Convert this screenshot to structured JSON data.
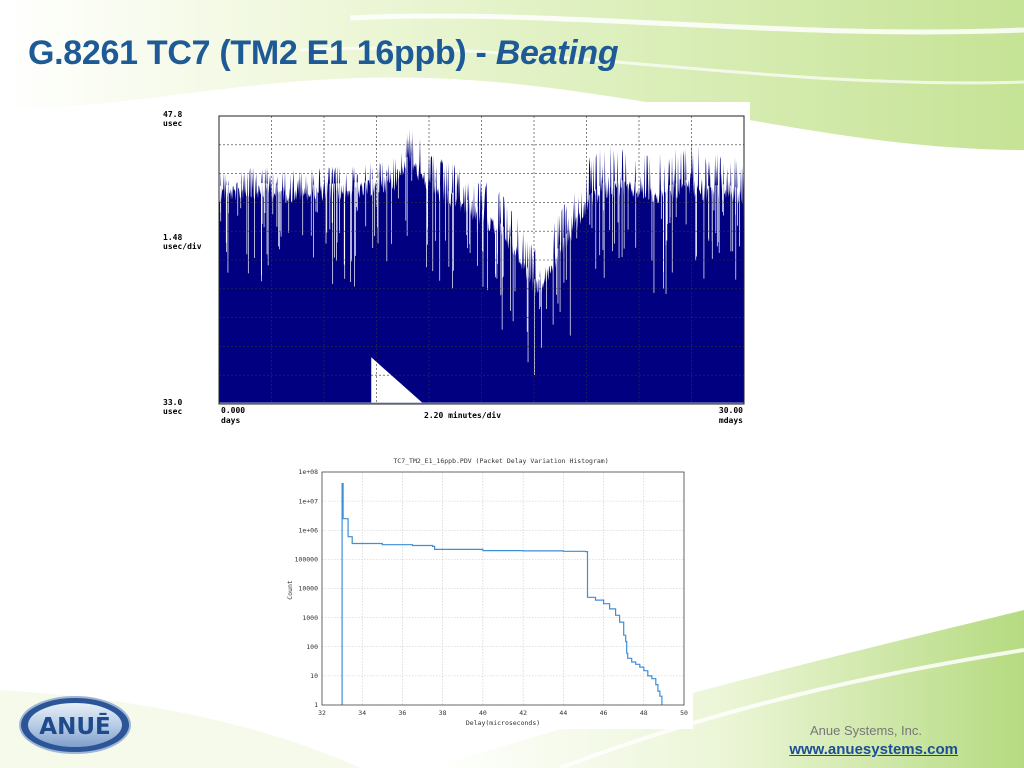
{
  "slide": {
    "title_main": "G.8261 TC7 (TM2 E1 16ppb) - ",
    "title_emphasis": "Beating",
    "company": "Anue Systems, Inc.",
    "website": "www.anuesystems.com",
    "logo_text": "ANUĒ",
    "colors": {
      "title": "#1e5a96",
      "accent_green": "#8cc63f",
      "link": "#1a4f96",
      "trace": "#000080",
      "histogram": "#3d8fd8"
    }
  },
  "chart_data": [
    {
      "type": "area",
      "title": "",
      "y_top_label": [
        "47.8",
        "usec"
      ],
      "y_scale_label": [
        "1.48",
        "usec/div"
      ],
      "y_bottom_label": [
        "33.0",
        "usec"
      ],
      "x_left_label": [
        "0.000",
        "days"
      ],
      "x_scale_label": "2.20 minutes/div",
      "x_right_label": [
        "30.00",
        "mdays"
      ],
      "ylim": [
        33.0,
        47.8
      ],
      "xlim": [
        0,
        30
      ],
      "x_unit": "mdays",
      "grid": true,
      "color": "#000080",
      "envelope": {
        "x": [
          0,
          2,
          4,
          6,
          8,
          9,
          10,
          10.5,
          11,
          12,
          13,
          14,
          15,
          16,
          17,
          17.5,
          18,
          18.5,
          19,
          20,
          21,
          22,
          23,
          24,
          25,
          26,
          27,
          28,
          29,
          30
        ],
        "typical": [
          44.2,
          44.4,
          44.2,
          44.3,
          44.4,
          44.6,
          44.8,
          45.6,
          45.8,
          44.6,
          44.0,
          43.6,
          43.0,
          42.4,
          41.2,
          40.2,
          39.4,
          39.6,
          40.4,
          42.0,
          43.6,
          44.4,
          44.5,
          44.4,
          44.1,
          44.3,
          44.6,
          44.2,
          44.3,
          44.0
        ],
        "peak": [
          45.0,
          45.3,
          45.1,
          45.2,
          45.4,
          45.5,
          45.8,
          47.0,
          47.4,
          46.0,
          45.6,
          45.0,
          44.6,
          44.0,
          42.8,
          41.8,
          41.0,
          41.2,
          42.4,
          43.6,
          45.6,
          46.4,
          46.2,
          46.0,
          45.8,
          46.1,
          46.6,
          45.8,
          46.0,
          45.6
        ]
      }
    },
    {
      "type": "line",
      "title": "TC7_TM2_E1_16ppb.PDV (Packet Delay Variation Histogram)",
      "xlabel": "Delay(microseconds)",
      "ylabel": "Count",
      "xlim": [
        32,
        50
      ],
      "ylim": [
        1,
        100000000
      ],
      "y_scale": "log",
      "grid": true,
      "x_ticks": [
        "32",
        "34",
        "36",
        "38",
        "40",
        "42",
        "44",
        "46",
        "48",
        "50"
      ],
      "y_ticks": [
        "1",
        "10",
        "100",
        "1000",
        "10000",
        "100000",
        "1e+06",
        "1e+07",
        "1e+08"
      ],
      "series": [
        {
          "x": [
            33.0,
            33.0,
            33.05,
            33.05,
            33.3,
            33.3,
            33.5,
            35,
            36.5,
            37.5,
            37.6,
            40,
            42,
            44,
            45.1,
            45.2,
            45.3,
            45.6,
            46.0,
            46.3,
            46.6,
            46.8,
            47.0,
            47.1,
            47.15,
            47.2,
            47.4,
            47.6,
            47.8,
            48.0,
            48.2,
            48.4,
            48.6,
            48.7,
            48.8,
            48.9
          ],
          "y": [
            1,
            40000000,
            40000000,
            2500000,
            2500000,
            600000,
            350000,
            320000,
            300000,
            280000,
            220000,
            200000,
            195000,
            190000,
            185000,
            5000,
            5000,
            4000,
            3000,
            2000,
            1200,
            700,
            250,
            150,
            60,
            40,
            30,
            25,
            20,
            15,
            10,
            8,
            5,
            3,
            2,
            1
          ]
        }
      ]
    }
  ]
}
